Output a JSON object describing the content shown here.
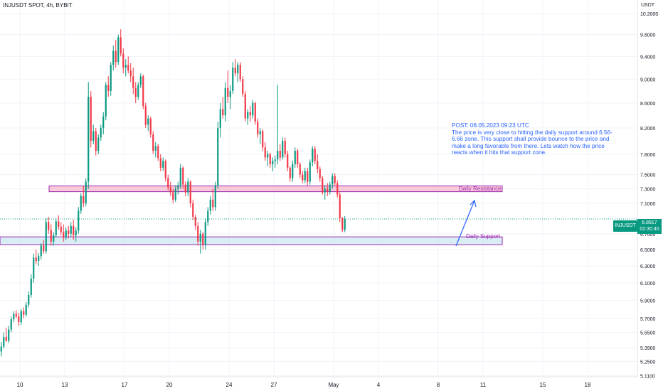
{
  "header": {
    "symbol_title": "INJUSDT SPOT, 4h, BYBIT",
    "currency": "USDT"
  },
  "note": "POST: 08.05.2023 09:23 UTC\nThe price is very close to hitting the daily support around 6.56-6.66 zone. This support shall provide bounce to the price and make a long favorable from there. Lets watch how the price reacts when it hits that support zone.",
  "zones": {
    "resistance": {
      "label": "Daily Resistance",
      "low": 7.26,
      "high": 7.34,
      "color": "#f8bbd0",
      "border": "#9c27b0"
    },
    "support": {
      "label": "Daily Support",
      "low": 6.56,
      "high": 6.66,
      "color": "#cfe8f3",
      "border": "#9c27b0"
    }
  },
  "last_price": {
    "symbol": "INJUSDT",
    "value": "6.8917",
    "countdown": "02:30:40",
    "price": 6.8917,
    "color": "#089981"
  },
  "colors": {
    "up": "#089981",
    "down": "#f23645",
    "note": "#2962ff",
    "grid": "#f0f3fa"
  },
  "chart_data": {
    "type": "candlestick",
    "title": "INJUSDT SPOT, 4h, BYBIT",
    "y_unit": "USDT",
    "scale": "log",
    "ylim": [
      5.05,
      10.3
    ],
    "y_ticks": [
      10.2,
      9.8,
      9.4,
      9.0,
      8.6,
      8.2,
      7.8,
      7.5,
      7.3,
      7.1,
      6.7,
      6.5,
      6.3,
      6.1,
      5.9,
      5.7,
      5.55,
      5.39,
      5.25,
      5.11
    ],
    "y_tick_labels": [
      "10.2000",
      "9.8000",
      "9.4000",
      "9.0000",
      "8.6000",
      "8.2000",
      "7.8000",
      "7.5000",
      "7.3000",
      "7.1000",
      "6.7000",
      "6.5000",
      "6.3000",
      "6.1000",
      "5.9000",
      "5.7000",
      "5.5500",
      "5.3900",
      "5.2500",
      "5.1100"
    ],
    "x_ticks": [
      "10",
      "13",
      "17",
      "20",
      "24",
      "27",
      "May",
      "4",
      "8",
      "11",
      "15",
      "18"
    ],
    "x_tick_day_index": [
      0,
      3,
      7,
      10,
      14,
      17,
      21,
      24,
      28,
      31,
      35,
      38
    ],
    "candle_interval_hours": 4,
    "candles": [
      [
        5.35,
        5.45,
        5.3,
        5.4
      ],
      [
        5.4,
        5.55,
        5.38,
        5.5
      ],
      [
        5.5,
        5.6,
        5.45,
        5.46
      ],
      [
        5.46,
        5.62,
        5.44,
        5.58
      ],
      [
        5.58,
        5.72,
        5.55,
        5.69
      ],
      [
        5.69,
        5.78,
        5.66,
        5.75
      ],
      [
        5.75,
        5.79,
        5.7,
        5.72
      ],
      [
        5.72,
        5.76,
        5.62,
        5.66
      ],
      [
        5.66,
        5.8,
        5.63,
        5.78
      ],
      [
        5.78,
        5.82,
        5.7,
        5.74
      ],
      [
        5.74,
        5.88,
        5.72,
        5.85
      ],
      [
        5.85,
        6.0,
        5.82,
        5.96
      ],
      [
        5.96,
        6.2,
        5.93,
        6.15
      ],
      [
        6.15,
        6.45,
        6.1,
        6.4
      ],
      [
        6.4,
        6.5,
        6.32,
        6.36
      ],
      [
        6.36,
        6.46,
        6.3,
        6.42
      ],
      [
        6.42,
        6.58,
        6.38,
        6.55
      ],
      [
        6.55,
        6.62,
        6.45,
        6.48
      ],
      [
        6.48,
        6.9,
        6.45,
        6.85
      ],
      [
        6.85,
        6.92,
        6.7,
        6.75
      ],
      [
        6.75,
        6.82,
        6.55,
        6.6
      ],
      [
        6.6,
        6.72,
        6.55,
        6.68
      ],
      [
        6.68,
        6.9,
        6.65,
        6.86
      ],
      [
        6.86,
        6.94,
        6.75,
        6.79
      ],
      [
        6.79,
        6.85,
        6.68,
        6.72
      ],
      [
        6.72,
        6.82,
        6.6,
        6.65
      ],
      [
        6.65,
        6.78,
        6.62,
        6.74
      ],
      [
        6.74,
        6.8,
        6.64,
        6.7
      ],
      [
        6.7,
        6.85,
        6.66,
        6.8
      ],
      [
        6.8,
        6.88,
        6.62,
        6.68
      ],
      [
        6.68,
        6.78,
        6.6,
        6.74
      ],
      [
        6.74,
        7.05,
        6.7,
        7.0
      ],
      [
        7.0,
        7.24,
        6.96,
        7.2
      ],
      [
        7.2,
        7.34,
        7.05,
        7.1
      ],
      [
        7.1,
        7.45,
        7.06,
        7.4
      ],
      [
        7.4,
        8.95,
        7.3,
        8.7
      ],
      [
        8.7,
        8.8,
        7.9,
        8.0
      ],
      [
        8.0,
        8.25,
        7.95,
        8.15
      ],
      [
        8.15,
        8.2,
        7.78,
        7.85
      ],
      [
        7.85,
        8.1,
        7.8,
        8.05
      ],
      [
        8.05,
        8.25,
        8.0,
        8.2
      ],
      [
        8.2,
        8.45,
        8.1,
        8.38
      ],
      [
        8.38,
        8.95,
        8.32,
        8.9
      ],
      [
        8.9,
        9.05,
        8.7,
        8.8
      ],
      [
        8.8,
        9.3,
        8.72,
        9.25
      ],
      [
        9.25,
        9.6,
        9.15,
        9.5
      ],
      [
        9.5,
        9.7,
        9.2,
        9.3
      ],
      [
        9.3,
        9.8,
        9.25,
        9.75
      ],
      [
        9.75,
        9.9,
        9.4,
        9.45
      ],
      [
        9.45,
        9.55,
        9.1,
        9.2
      ],
      [
        9.2,
        9.35,
        9.05,
        9.25
      ],
      [
        9.25,
        9.4,
        9.1,
        9.15
      ],
      [
        9.15,
        9.28,
        8.95,
        9.05
      ],
      [
        9.05,
        9.2,
        8.75,
        8.85
      ],
      [
        8.85,
        8.95,
        8.6,
        8.7
      ],
      [
        8.7,
        8.95,
        8.65,
        8.9
      ],
      [
        8.9,
        9.1,
        8.85,
        9.05
      ],
      [
        9.05,
        9.08,
        8.5,
        8.55
      ],
      [
        8.55,
        8.6,
        8.2,
        8.25
      ],
      [
        8.25,
        8.4,
        8.15,
        8.35
      ],
      [
        8.35,
        8.38,
        8.05,
        8.1
      ],
      [
        8.1,
        8.15,
        7.8,
        7.85
      ],
      [
        7.85,
        7.98,
        7.75,
        7.92
      ],
      [
        7.92,
        7.95,
        7.7,
        7.74
      ],
      [
        7.74,
        7.8,
        7.55,
        7.6
      ],
      [
        7.6,
        7.75,
        7.55,
        7.7
      ],
      [
        7.7,
        7.72,
        7.4,
        7.45
      ],
      [
        7.45,
        7.5,
        7.28,
        7.32
      ],
      [
        7.32,
        7.4,
        7.2,
        7.25
      ],
      [
        7.25,
        7.3,
        7.1,
        7.15
      ],
      [
        7.15,
        7.35,
        7.12,
        7.3
      ],
      [
        7.3,
        7.4,
        7.22,
        7.35
      ],
      [
        7.35,
        7.65,
        7.3,
        7.6
      ],
      [
        7.6,
        7.62,
        7.3,
        7.36
      ],
      [
        7.36,
        7.4,
        7.2,
        7.25
      ],
      [
        7.25,
        7.45,
        7.2,
        7.4
      ],
      [
        7.4,
        7.42,
        7.05,
        7.1
      ],
      [
        7.1,
        7.15,
        6.88,
        6.92
      ],
      [
        6.92,
        6.95,
        6.75,
        6.8
      ],
      [
        6.8,
        6.85,
        6.55,
        6.6
      ],
      [
        6.6,
        6.75,
        6.45,
        6.7
      ],
      [
        6.7,
        6.72,
        6.5,
        6.56
      ],
      [
        6.56,
        6.9,
        6.5,
        6.85
      ],
      [
        6.85,
        7.05,
        6.8,
        7.0
      ],
      [
        7.0,
        7.2,
        6.95,
        7.15
      ],
      [
        7.15,
        7.3,
        7.0,
        7.05
      ],
      [
        7.05,
        7.4,
        7.0,
        7.35
      ],
      [
        7.35,
        8.3,
        7.3,
        8.2
      ],
      [
        8.2,
        8.6,
        8.05,
        8.5
      ],
      [
        8.5,
        8.7,
        8.35,
        8.4
      ],
      [
        8.4,
        8.95,
        8.3,
        8.85
      ],
      [
        8.85,
        9.15,
        8.6,
        8.7
      ],
      [
        8.7,
        8.9,
        8.5,
        8.8
      ],
      [
        8.8,
        9.3,
        8.75,
        9.2
      ],
      [
        9.2,
        9.35,
        9.05,
        9.1
      ],
      [
        9.1,
        9.3,
        8.95,
        9.25
      ],
      [
        9.25,
        9.3,
        8.95,
        9.0
      ],
      [
        9.0,
        9.05,
        8.7,
        8.75
      ],
      [
        8.75,
        8.8,
        8.3,
        8.35
      ],
      [
        8.35,
        8.5,
        8.25,
        8.45
      ],
      [
        8.45,
        8.55,
        8.3,
        8.4
      ],
      [
        8.4,
        8.65,
        8.35,
        8.6
      ],
      [
        8.6,
        8.62,
        8.25,
        8.3
      ],
      [
        8.3,
        8.35,
        8.05,
        8.1
      ],
      [
        8.1,
        8.2,
        7.95,
        8.15
      ],
      [
        8.15,
        8.18,
        7.85,
        7.9
      ],
      [
        7.9,
        7.98,
        7.7,
        7.75
      ],
      [
        7.75,
        7.85,
        7.62,
        7.8
      ],
      [
        7.8,
        7.82,
        7.6,
        7.65
      ],
      [
        7.65,
        7.75,
        7.55,
        7.7
      ],
      [
        7.7,
        7.78,
        7.6,
        7.72
      ],
      [
        7.72,
        8.9,
        7.65,
        7.85
      ],
      [
        7.85,
        7.95,
        7.7,
        7.75
      ],
      [
        7.75,
        8.05,
        7.72,
        8.0
      ],
      [
        8.0,
        8.05,
        7.75,
        7.8
      ],
      [
        7.8,
        7.85,
        7.55,
        7.6
      ],
      [
        7.6,
        7.62,
        7.4,
        7.45
      ],
      [
        7.45,
        7.7,
        7.4,
        7.65
      ],
      [
        7.65,
        7.9,
        7.6,
        7.85
      ],
      [
        7.85,
        7.88,
        7.6,
        7.65
      ],
      [
        7.65,
        7.68,
        7.45,
        7.5
      ],
      [
        7.5,
        7.55,
        7.38,
        7.42
      ],
      [
        7.42,
        7.6,
        7.38,
        7.55
      ],
      [
        7.55,
        7.6,
        7.35,
        7.4
      ],
      [
        7.4,
        7.72,
        7.36,
        7.68
      ],
      [
        7.68,
        7.92,
        7.62,
        7.88
      ],
      [
        7.88,
        7.92,
        7.65,
        7.7
      ],
      [
        7.7,
        7.8,
        7.52,
        7.58
      ],
      [
        7.58,
        7.62,
        7.4,
        7.45
      ],
      [
        7.45,
        7.48,
        7.22,
        7.25
      ],
      [
        7.25,
        7.35,
        7.15,
        7.3
      ],
      [
        7.3,
        7.38,
        7.2,
        7.26
      ],
      [
        7.26,
        7.4,
        7.22,
        7.36
      ],
      [
        7.36,
        7.52,
        7.3,
        7.48
      ],
      [
        7.48,
        7.52,
        7.34,
        7.38
      ],
      [
        7.38,
        7.42,
        7.18,
        7.22
      ],
      [
        7.22,
        7.25,
        6.85,
        6.9
      ],
      [
        6.9,
        6.92,
        6.72,
        6.75
      ],
      [
        6.75,
        6.93,
        6.72,
        6.8917
      ]
    ]
  }
}
